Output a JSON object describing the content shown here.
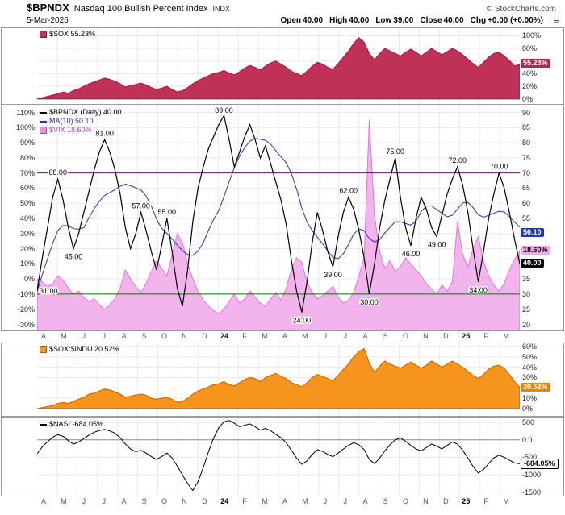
{
  "header": {
    "symbol": "$BPNDX",
    "name": "Nasdaq 100 Bullish Percent Index",
    "exchange": "INDX",
    "copyright": "© StockCharts.com",
    "date": "5-Mar-2025",
    "quote": [
      {
        "label": "Open",
        "value": "40.00"
      },
      {
        "label": "High",
        "value": "40.00"
      },
      {
        "label": "Low",
        "value": "39.00"
      },
      {
        "label": "Close",
        "value": "40.00"
      },
      {
        "label": "Chg",
        "value": "+0.00 (+0.00%)"
      }
    ],
    "menu_icon": "≡"
  },
  "x_axis": {
    "labels": [
      "A",
      "M",
      "J",
      "J",
      "A",
      "S",
      "O",
      "N",
      "D",
      "24",
      "F",
      "M",
      "A",
      "M",
      "J",
      "J",
      "A",
      "S",
      "O",
      "N",
      "D",
      "25",
      "F",
      "M"
    ],
    "year_labels": [
      "24",
      "25"
    ]
  },
  "chart_data": [
    {
      "name": "sox",
      "type": "area",
      "title": "$SOX",
      "current": "55.23%",
      "ylim": [
        -8,
        112
      ],
      "grid_vals": [
        100,
        80,
        60,
        40,
        20
      ],
      "zero_line": true,
      "yticks": [
        {
          "v": 100,
          "t": "100%"
        },
        {
          "v": 80,
          "t": "80%"
        },
        {
          "v": 60,
          "t": "60%"
        },
        {
          "v": 40,
          "t": "40%"
        },
        {
          "v": 20,
          "t": "20%"
        },
        {
          "v": 0,
          "t": "0%"
        }
      ],
      "legend": [
        {
          "marker": "area",
          "color": "#bf3156",
          "text": "$SOX 55.23%",
          "tcolor": "#000000"
        }
      ],
      "series": [
        {
          "name": "sox",
          "type": "area",
          "axis": "right",
          "baseline": 0,
          "fill": "#bf3156",
          "stroke": "#8f1f3d",
          "values": [
            0,
            2,
            4,
            6,
            8,
            11,
            9,
            13,
            16,
            20,
            24,
            27,
            30,
            33,
            31,
            28,
            24,
            19,
            21,
            23,
            25,
            22,
            18,
            15,
            17,
            20,
            15,
            11,
            13,
            18,
            24,
            29,
            33,
            37,
            40,
            42,
            45,
            41,
            38,
            43,
            49,
            53,
            50,
            46,
            52,
            57,
            60,
            55,
            50,
            44,
            40,
            37,
            44,
            52,
            58,
            55,
            50,
            47,
            56,
            66,
            76,
            88,
            97,
            90,
            72,
            62,
            72,
            80,
            76,
            72,
            68,
            74,
            79,
            74,
            68,
            74,
            80,
            75,
            70,
            75,
            80,
            76,
            70,
            63,
            56,
            50,
            58,
            66,
            72,
            74,
            68,
            61,
            52,
            55.23
          ]
        }
      ],
      "boxes": [
        {
          "name": "sox-value-box",
          "t": "55.23%",
          "v": 55.23,
          "bg": "#b22a50",
          "fg": "#ffffff"
        }
      ]
    },
    {
      "name": "bpndx",
      "type": "multi",
      "title": "$BPNDX (Daily)",
      "current": "40.00",
      "ylim": [
        18,
        92
      ],
      "left_ylim": [
        -34,
        114
      ],
      "grid_vals": [
        90,
        85,
        80,
        75,
        70,
        65,
        60,
        55,
        50,
        45,
        40,
        35,
        30,
        25,
        20
      ],
      "zero_line": false,
      "yticks": [
        {
          "v": 90,
          "t": "90"
        },
        {
          "v": 85,
          "t": "85"
        },
        {
          "v": 80,
          "t": "80"
        },
        {
          "v": 75,
          "t": "75"
        },
        {
          "v": 70,
          "t": "70"
        },
        {
          "v": 65,
          "t": "65"
        },
        {
          "v": 60,
          "t": "60"
        },
        {
          "v": 55,
          "t": "55"
        },
        {
          "v": 50,
          "t": "50"
        },
        {
          "v": 45,
          "t": "45"
        },
        {
          "v": 40,
          "t": "40"
        },
        {
          "v": 35,
          "t": "35"
        },
        {
          "v": 30,
          "t": "30"
        },
        {
          "v": 25,
          "t": "25"
        },
        {
          "v": 20,
          "t": "20"
        }
      ],
      "left_ticks": [
        {
          "v": 110,
          "t": "110%"
        },
        {
          "v": 100,
          "t": "100%"
        },
        {
          "v": 90,
          "t": "90%"
        },
        {
          "v": 80,
          "t": "80%"
        },
        {
          "v": 70,
          "t": "70%"
        },
        {
          "v": 60,
          "t": "60%"
        },
        {
          "v": 50,
          "t": "50%"
        },
        {
          "v": 40,
          "t": "40%"
        },
        {
          "v": 30,
          "t": "30%"
        },
        {
          "v": 20,
          "t": "20%"
        },
        {
          "v": 10,
          "t": "10%"
        },
        {
          "v": 0,
          "t": "0%"
        },
        {
          "v": -10,
          "t": "-10%"
        },
        {
          "v": -20,
          "t": "-20%"
        },
        {
          "v": -30,
          "t": "-30%"
        }
      ],
      "hlines": [
        {
          "v": 70,
          "color": "#800080"
        },
        {
          "v": 30,
          "color": "#007700"
        }
      ],
      "legend": [
        {
          "marker": "line",
          "color": "#000000",
          "text": "$BPNDX (Daily) 40.00",
          "tcolor": "#000000"
        },
        {
          "marker": "line",
          "color": "#2233bb",
          "text": "MA(10) 50.10",
          "tcolor": "#2233bb"
        },
        {
          "marker": "area",
          "color": "#e98fe0",
          "text": "$VIX 18.60%",
          "tcolor": "#c03ab0"
        }
      ],
      "series": [
        {
          "name": "vix",
          "type": "area",
          "axis": "left",
          "fill": "#f3b3ec",
          "stroke": "#dd77d4",
          "values": [
            0,
            -2,
            -5,
            -3,
            2,
            -1,
            -6,
            -10,
            -8,
            -12,
            -15,
            -13,
            -17,
            -20,
            -17,
            -13,
            -6,
            6,
            0,
            -5,
            -9,
            -3,
            5,
            12,
            7,
            2,
            16,
            30,
            24,
            10,
            0,
            -8,
            -14,
            -18,
            -21,
            -23,
            -20,
            -15,
            -10,
            -16,
            -13,
            -8,
            -12,
            -16,
            -18,
            -13,
            -9,
            -14,
            -6,
            6,
            14,
            11,
            -2,
            -9,
            -13,
            -11,
            -8,
            -5,
            -12,
            -16,
            -14,
            -9,
            2,
            14,
            105,
            42,
            18,
            7,
            12,
            5,
            8,
            14,
            10,
            6,
            2,
            -3,
            -7,
            -10,
            -4,
            -8,
            -2,
            38,
            16,
            8,
            20,
            28,
            12,
            2,
            -4,
            -8,
            -3,
            6,
            13,
            18.6
          ]
        },
        {
          "name": "ma10",
          "type": "ma-line",
          "axis": "right",
          "window": 10,
          "source": "bpndx",
          "color": "#2233bb",
          "width": 1
        },
        {
          "name": "bpndx",
          "type": "line",
          "axis": "right",
          "color": "#000000",
          "width": 1.2,
          "values": [
            31,
            42,
            52,
            62,
            68,
            61,
            52,
            45,
            50,
            57,
            64,
            71,
            77,
            81,
            77,
            71,
            63,
            52,
            45,
            50,
            57,
            51,
            44,
            38,
            46,
            55,
            44,
            32,
            26,
            38,
            54,
            65,
            72,
            78,
            82,
            86,
            89,
            81,
            72,
            77,
            82,
            86,
            81,
            75,
            79,
            73,
            67,
            61,
            53,
            41,
            31,
            24,
            34,
            47,
            57,
            51,
            44,
            39,
            49,
            57,
            62,
            58,
            51,
            42,
            30,
            40,
            52,
            61,
            68,
            75,
            62,
            52,
            46,
            55,
            62,
            58,
            52,
            49,
            56,
            63,
            68,
            72,
            66,
            57,
            45,
            34,
            44,
            55,
            63,
            70,
            65,
            57,
            48,
            40
          ]
        }
      ],
      "annotations": [
        {
          "i": 0,
          "v": 31,
          "t": "31.00",
          "p": "s"
        },
        {
          "i": 4,
          "v": 68,
          "t": "68.00",
          "p": "a"
        },
        {
          "i": 7,
          "v": 45,
          "t": "45.00",
          "p": "b"
        },
        {
          "i": 13,
          "v": 81,
          "t": "81.00",
          "p": "a"
        },
        {
          "i": 20,
          "v": 57,
          "t": "57.00",
          "p": "a"
        },
        {
          "i": 25,
          "v": 55,
          "t": "55.00",
          "p": "a"
        },
        {
          "i": 36,
          "v": 89,
          "t": "89.00",
          "p": "a"
        },
        {
          "i": 51,
          "v": 24,
          "t": "24.00",
          "p": "b"
        },
        {
          "i": 57,
          "v": 39,
          "t": "39.00",
          "p": "b"
        },
        {
          "i": 60,
          "v": 62,
          "t": "62.00",
          "p": "a"
        },
        {
          "i": 64,
          "v": 30,
          "t": "30.00",
          "p": "b"
        },
        {
          "i": 69,
          "v": 75,
          "t": "75.00",
          "p": "a"
        },
        {
          "i": 72,
          "v": 46,
          "t": "46.00",
          "p": "b"
        },
        {
          "i": 77,
          "v": 49,
          "t": "49.00",
          "p": "b"
        },
        {
          "i": 81,
          "v": 72,
          "t": "72.00",
          "p": "a"
        },
        {
          "i": 85,
          "v": 34,
          "t": "34.00",
          "p": "b"
        },
        {
          "i": 89,
          "v": 70,
          "t": "70.00",
          "p": "a"
        }
      ],
      "boxes": [
        {
          "name": "ma-value-box",
          "t": "50.10",
          "v": 50.1,
          "bg": "#2233bb",
          "fg": "#ffffff"
        },
        {
          "name": "vix-value-box",
          "t": "18.60%",
          "v": 44.3,
          "bg": "#f0a6e8",
          "fg": "#000000"
        },
        {
          "name": "bpndx-value-box",
          "t": "40.00",
          "v": 40,
          "bg": "#000000",
          "fg": "#ffffff"
        }
      ]
    },
    {
      "name": "sox-indu",
      "type": "area",
      "title": "$SOX:$INDU",
      "current": "20.52%",
      "ylim": [
        -7,
        63
      ],
      "grid_vals": [
        60,
        50,
        40,
        30,
        20,
        10
      ],
      "zero_line": true,
      "yticks": [
        {
          "v": 60,
          "t": "60%"
        },
        {
          "v": 50,
          "t": "50%"
        },
        {
          "v": 40,
          "t": "40%"
        },
        {
          "v": 30,
          "t": "30%"
        },
        {
          "v": 20,
          "t": "20%"
        },
        {
          "v": 10,
          "t": "10%"
        },
        {
          "v": 0,
          "t": "0%"
        }
      ],
      "legend": [
        {
          "marker": "area",
          "color": "#f7941e",
          "text": "$SOX:$INDU 20.52%",
          "tcolor": "#000000"
        }
      ],
      "series": [
        {
          "name": "sox-indu",
          "type": "area",
          "axis": "right",
          "baseline": 0,
          "fill": "#f7941e",
          "stroke": "#b36510",
          "values": [
            0,
            1,
            2,
            3,
            5,
            6,
            5,
            7,
            9,
            11,
            14,
            15,
            17,
            19,
            18,
            16,
            14,
            11,
            12,
            13,
            14,
            13,
            10,
            9,
            10,
            11,
            9,
            6,
            7,
            10,
            14,
            17,
            19,
            21,
            23,
            24,
            26,
            23,
            22,
            25,
            28,
            30,
            29,
            26,
            30,
            32,
            34,
            31,
            29,
            25,
            23,
            21,
            25,
            30,
            33,
            31,
            29,
            27,
            32,
            38,
            43,
            50,
            55,
            58,
            44,
            35,
            41,
            46,
            43,
            41,
            39,
            42,
            45,
            42,
            39,
            42,
            46,
            43,
            40,
            43,
            46,
            43,
            40,
            36,
            32,
            29,
            33,
            38,
            41,
            42,
            39,
            33,
            26,
            20.52
          ]
        }
      ],
      "boxes": [
        {
          "name": "ratio-value-box",
          "t": "20.52%",
          "v": 20.52,
          "bg": "#e8820e",
          "fg": "#ffffff"
        }
      ]
    },
    {
      "name": "nasi",
      "type": "line",
      "title": "$NASI",
      "current": "-684.05%",
      "ylim": [
        -1600,
        620
      ],
      "grid_vals": [
        500,
        -500,
        -1000,
        -1500
      ],
      "zero_line": true,
      "yticks": [
        {
          "v": 500,
          "t": "500"
        },
        {
          "v": 0,
          "t": "0.0"
        },
        {
          "v": -500,
          "t": "-500"
        },
        {
          "v": -1000,
          "t": "-1000"
        },
        {
          "v": -1500,
          "t": "-1500"
        }
      ],
      "legend": [
        {
          "marker": "line",
          "color": "#000000",
          "text": "$NASI -684.05%",
          "tcolor": "#000000"
        }
      ],
      "series": [
        {
          "name": "nasi",
          "type": "line",
          "axis": "right",
          "color": "#000000",
          "width": 1,
          "values": [
            -400,
            -200,
            -50,
            80,
            150,
            100,
            -20,
            -120,
            -60,
            40,
            140,
            220,
            270,
            300,
            260,
            190,
            60,
            -120,
            -260,
            -340,
            -300,
            -380,
            -480,
            -560,
            -480,
            -380,
            -520,
            -750,
            -1000,
            -1250,
            -1450,
            -1200,
            -800,
            -350,
            50,
            350,
            520,
            560,
            480,
            380,
            420,
            460,
            380,
            280,
            330,
            260,
            160,
            60,
            -80,
            -300,
            -520,
            -700,
            -600,
            -420,
            -280,
            -330,
            -420,
            -480,
            -380,
            -260,
            -160,
            -80,
            -140,
            -280,
            -560,
            -680,
            -520,
            -320,
            -140,
            0,
            60,
            -40,
            -160,
            -260,
            -320,
            -220,
            -120,
            -180,
            -260,
            -160,
            -60,
            -120,
            -300,
            -520,
            -760,
            -950,
            -850,
            -680,
            -520,
            -440,
            -500,
            -580,
            -660,
            -684.05
          ]
        }
      ],
      "boxes": [
        {
          "name": "nasi-value-box",
          "t": "-684.05%",
          "v": -684.05,
          "bg": "#ffffff",
          "fg": "#000000",
          "border": "#000000"
        }
      ]
    }
  ]
}
